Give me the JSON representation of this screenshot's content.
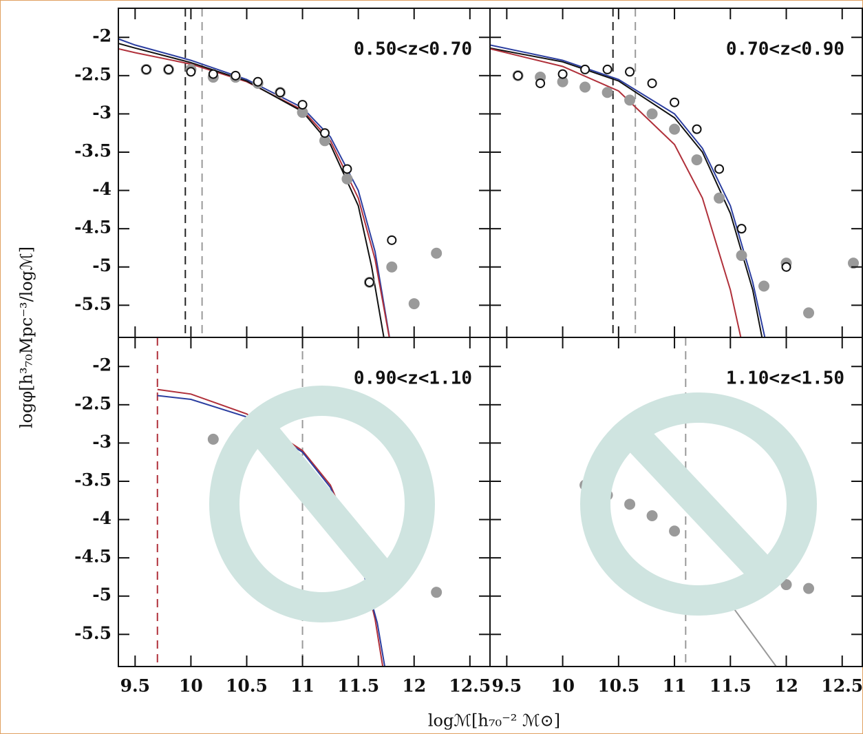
{
  "ylabel": "logφ[h³₇₀Mpc⁻³/logℳ]",
  "xlabel": "logℳ[h₇₀⁻² ℳ⊙]",
  "chart_data": [
    {
      "type": "line",
      "label": "0.50<z<0.70",
      "xlim": [
        9.35,
        12.68
      ],
      "ylim": [
        -5.92,
        -1.62
      ],
      "xticks": [
        9.5,
        10,
        10.5,
        11,
        11.5,
        12,
        12.5
      ],
      "yticks": [
        -2,
        -2.5,
        -3,
        -3.5,
        -4,
        -4.5,
        -5,
        -5.5
      ],
      "vlines": [
        {
          "value": 9.95,
          "color": "#222222"
        },
        {
          "value": 10.1,
          "color": "#999999"
        }
      ],
      "series": [
        {
          "style": "line",
          "color": "#2b3ea0",
          "x": [
            9.35,
            9.5,
            10,
            10.5,
            11,
            11.25,
            11.5,
            11.65,
            11.8
          ],
          "values": [
            -2.02,
            -2.1,
            -2.3,
            -2.55,
            -2.92,
            -3.3,
            -4.0,
            -4.8,
            -6.1
          ]
        },
        {
          "style": "line",
          "color": "#b0303a",
          "x": [
            9.35,
            9.5,
            10,
            10.5,
            11,
            11.25,
            11.5,
            11.65,
            11.8
          ],
          "values": [
            -2.15,
            -2.2,
            -2.35,
            -2.58,
            -2.95,
            -3.35,
            -4.1,
            -4.9,
            -6.1
          ]
        },
        {
          "style": "line",
          "color": "#111111",
          "x": [
            9.35,
            9.5,
            10,
            10.5,
            11,
            11.25,
            11.5,
            11.62,
            11.75
          ],
          "values": [
            -2.08,
            -2.14,
            -2.33,
            -2.57,
            -2.97,
            -3.4,
            -4.2,
            -5.0,
            -6.1
          ]
        },
        {
          "style": "points",
          "marker": "filled",
          "color": "#9a9a9a",
          "x": [
            9.6,
            9.8,
            10.0,
            10.2,
            10.4,
            10.6,
            10.8,
            11.0,
            11.2,
            11.4,
            11.6,
            11.8,
            12.0,
            12.2
          ],
          "values": [
            -2.42,
            -2.42,
            -2.42,
            -2.52,
            -2.52,
            -2.6,
            -2.72,
            -2.98,
            -3.35,
            -3.85,
            -5.2,
            -5.0,
            -5.48,
            -4.82
          ]
        },
        {
          "style": "points",
          "marker": "open",
          "color": "#111111",
          "x": [
            9.6,
            9.8,
            10.0,
            10.2,
            10.4,
            10.6,
            10.8,
            11.0,
            11.2,
            11.4,
            11.6,
            11.8
          ],
          "values": [
            -2.42,
            -2.42,
            -2.45,
            -2.48,
            -2.5,
            -2.58,
            -2.72,
            -2.88,
            -3.25,
            -3.72,
            -5.2,
            -4.65
          ]
        }
      ]
    },
    {
      "type": "line",
      "label": "0.70<z<0.90",
      "xlim": [
        9.35,
        12.68
      ],
      "ylim": [
        -5.92,
        -1.62
      ],
      "xticks": [
        9.5,
        10,
        10.5,
        11,
        11.5,
        12,
        12.5
      ],
      "yticks": [
        -2,
        -2.5,
        -3,
        -3.5,
        -4,
        -4.5,
        -5,
        -5.5
      ],
      "vlines": [
        {
          "value": 10.45,
          "color": "#222222"
        },
        {
          "value": 10.65,
          "color": "#999999"
        }
      ],
      "series": [
        {
          "style": "line",
          "color": "#2b3ea0",
          "x": [
            9.35,
            10,
            10.5,
            11,
            11.25,
            11.5,
            11.7,
            11.85
          ],
          "values": [
            -2.1,
            -2.3,
            -2.55,
            -3.0,
            -3.45,
            -4.2,
            -5.2,
            -6.2
          ]
        },
        {
          "style": "line",
          "color": "#111111",
          "x": [
            9.35,
            10,
            10.5,
            11,
            11.25,
            11.5,
            11.7,
            11.82
          ],
          "values": [
            -2.14,
            -2.32,
            -2.57,
            -3.05,
            -3.5,
            -4.3,
            -5.3,
            -6.2
          ]
        },
        {
          "style": "line",
          "color": "#b0303a",
          "x": [
            9.35,
            10,
            10.5,
            11,
            11.25,
            11.5,
            11.65
          ],
          "values": [
            -2.15,
            -2.38,
            -2.7,
            -3.4,
            -4.1,
            -5.3,
            -6.3
          ]
        },
        {
          "style": "points",
          "marker": "filled",
          "color": "#9a9a9a",
          "x": [
            9.6,
            9.8,
            10.0,
            10.2,
            10.4,
            10.6,
            10.8,
            11.0,
            11.2,
            11.4,
            11.6,
            11.8,
            12.0,
            12.2,
            12.6
          ],
          "values": [
            -2.5,
            -2.52,
            -2.58,
            -2.65,
            -2.72,
            -2.82,
            -3.0,
            -3.2,
            -3.6,
            -4.1,
            -4.85,
            -5.25,
            -4.95,
            -5.6,
            -4.95
          ]
        },
        {
          "style": "points",
          "marker": "open",
          "color": "#111111",
          "x": [
            9.6,
            9.8,
            10.0,
            10.2,
            10.4,
            10.6,
            10.8,
            11.0,
            11.2,
            11.4,
            11.6,
            12.0
          ],
          "values": [
            -2.5,
            -2.6,
            -2.48,
            -2.42,
            -2.42,
            -2.45,
            -2.6,
            -2.85,
            -3.2,
            -3.72,
            -4.5,
            -5.0
          ]
        }
      ]
    },
    {
      "type": "line",
      "label": "0.90<z<1.10",
      "xlim": [
        9.35,
        12.68
      ],
      "ylim": [
        -5.92,
        -1.62
      ],
      "xticks": [
        9.5,
        10,
        10.5,
        11,
        11.5,
        12,
        12.5
      ],
      "yticks": [
        -2,
        -2.5,
        -3,
        -3.5,
        -4,
        -4.5,
        -5,
        -5.5
      ],
      "vlines": [
        {
          "value": 9.7,
          "color": "#b0303a"
        },
        {
          "value": 11.0,
          "color": "#999999"
        }
      ],
      "series": [
        {
          "style": "line",
          "color": "#b0303a",
          "x": [
            9.7,
            10,
            10.5,
            11,
            11.25,
            11.5,
            11.65,
            11.75
          ],
          "values": [
            -2.3,
            -2.36,
            -2.62,
            -3.1,
            -3.55,
            -4.4,
            -5.3,
            -6.2
          ]
        },
        {
          "style": "line",
          "color": "#2b3ea0",
          "x": [
            9.7,
            10,
            10.5,
            11,
            11.25,
            11.5,
            11.67,
            11.77
          ],
          "values": [
            -2.38,
            -2.43,
            -2.66,
            -3.12,
            -3.58,
            -4.45,
            -5.35,
            -6.2
          ]
        },
        {
          "style": "points",
          "marker": "filled",
          "color": "#9a9a9a",
          "x": [
            10.2,
            10.4,
            12.2
          ],
          "values": [
            -2.95,
            -3.2,
            -4.95
          ]
        }
      ]
    },
    {
      "type": "line",
      "label": "1.10<z<1.50",
      "xlim": [
        9.35,
        12.68
      ],
      "ylim": [
        -5.92,
        -1.62
      ],
      "xticks": [
        9.5,
        10,
        10.5,
        11,
        11.5,
        12,
        12.5
      ],
      "yticks": [
        -2,
        -2.5,
        -3,
        -3.5,
        -4,
        -4.5,
        -5,
        -5.5
      ],
      "vlines": [
        {
          "value": 11.1,
          "color": "#999999"
        }
      ],
      "series": [
        {
          "style": "line",
          "color": "#9a9a9a",
          "x": [
            11.4,
            11.6,
            11.8,
            12.0
          ],
          "values": [
            -4.9,
            -5.3,
            -5.7,
            -6.1
          ]
        },
        {
          "style": "points",
          "marker": "filled",
          "color": "#9a9a9a",
          "x": [
            10.2,
            10.4,
            10.6,
            10.8,
            11.0,
            12.0,
            12.2
          ],
          "values": [
            -3.55,
            -3.68,
            -3.8,
            -3.95,
            -4.15,
            -4.85,
            -4.9
          ]
        }
      ]
    }
  ]
}
